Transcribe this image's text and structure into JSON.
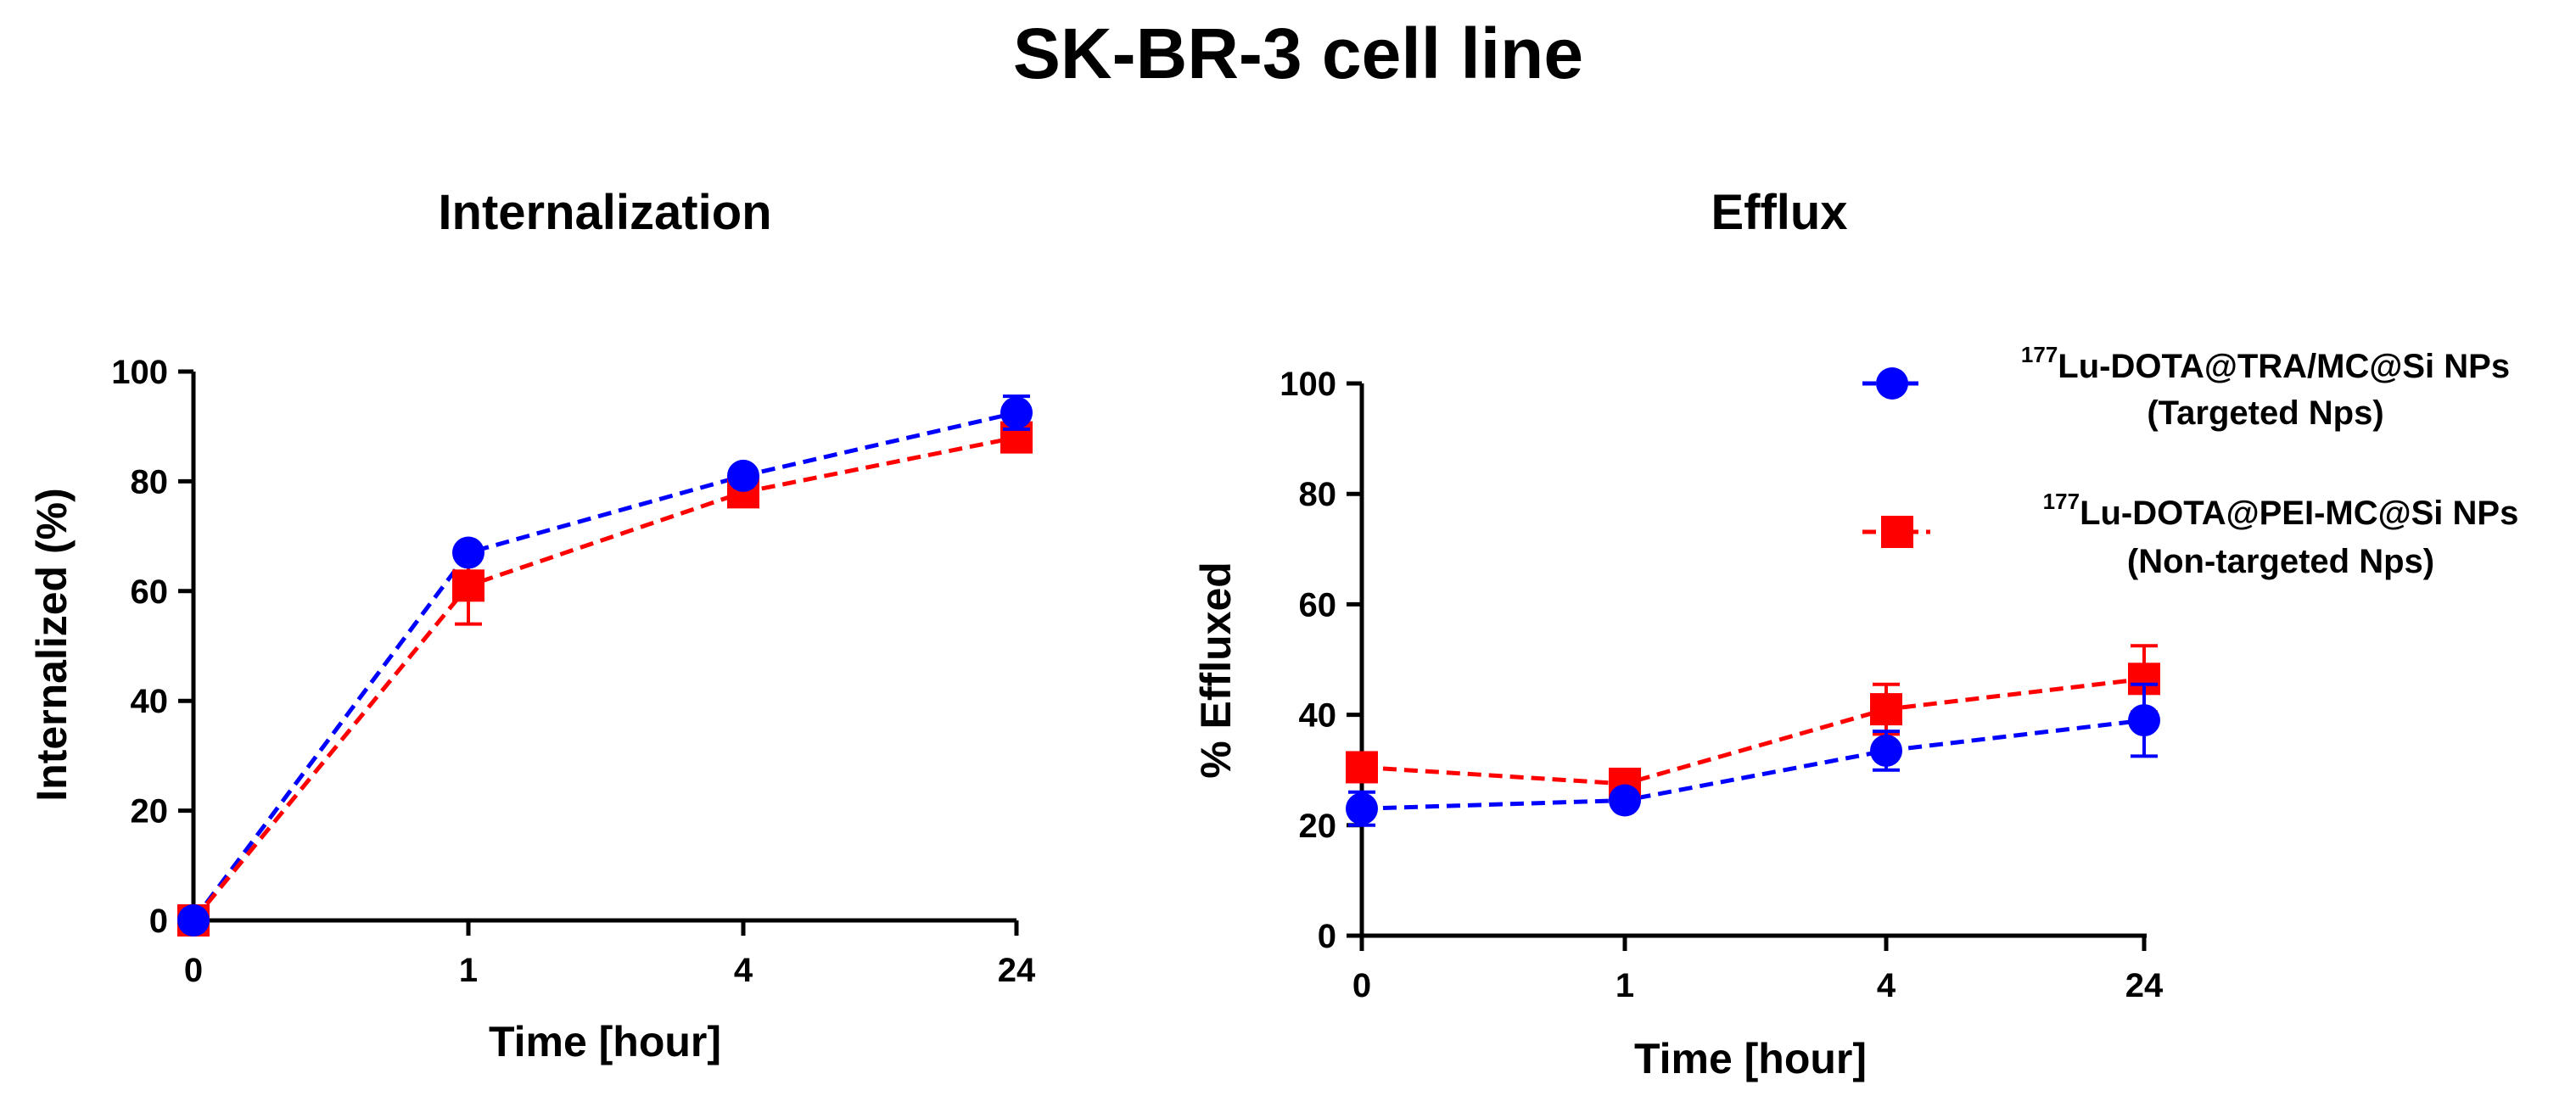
{
  "figure": {
    "title": "SK-BR-3 cell line"
  },
  "colors": {
    "targeted": "#0000FF",
    "nontargeted": "#FF0000",
    "axis": "#000000"
  },
  "chart_data": [
    {
      "type": "line",
      "title": "Internalization",
      "xlabel": "Time [hour]",
      "ylabel": "Internalized (%)",
      "categories": [
        "0",
        "1",
        "4",
        "24"
      ],
      "ylim": [
        0,
        100
      ],
      "yticks": [
        "0",
        "20",
        "40",
        "60",
        "80",
        "100"
      ],
      "grid": false,
      "series": [
        {
          "name": "177Lu-DOTA@TRA/MC@Si NPs (Targeted Nps)",
          "marker": "circle",
          "color": "#0000FF",
          "values": [
            0,
            67,
            81,
            92.5
          ],
          "error": [
            0,
            1,
            1,
            3
          ]
        },
        {
          "name": "177Lu-DOTA@PEI-MC@Si NPs (Non-targeted Nps)",
          "marker": "square",
          "color": "#FF0000",
          "values": [
            0,
            61,
            78,
            88
          ],
          "error": [
            0,
            7,
            1,
            1
          ]
        }
      ]
    },
    {
      "type": "line",
      "title": "Efflux",
      "xlabel": "Time [hour]",
      "ylabel": "% Effluxed",
      "categories": [
        "0",
        "1",
        "4",
        "24"
      ],
      "ylim": [
        0,
        100
      ],
      "yticks": [
        "0",
        "20",
        "40",
        "60",
        "80",
        "100"
      ],
      "grid": false,
      "legend": {
        "position": "top-right",
        "entries": [
          {
            "iso": "177",
            "line1": "Lu-DOTA@TRA/MC@Si NPs",
            "line2": "(Targeted Nps)",
            "marker": "circle",
            "color": "#0000FF"
          },
          {
            "iso": "177",
            "line1": "Lu-DOTA@PEI-MC@Si NPs",
            "line2": "(Non-targeted Nps)",
            "marker": "square",
            "color": "#FF0000"
          }
        ]
      },
      "series": [
        {
          "name": "177Lu-DOTA@TRA/MC@Si NPs (Targeted Nps)",
          "marker": "circle",
          "color": "#0000FF",
          "values": [
            23,
            24.5,
            33.5,
            39
          ],
          "error": [
            3,
            1,
            3.5,
            6.5
          ]
        },
        {
          "name": "177Lu-DOTA@PEI-MC@Si NPs (Non-targeted Nps)",
          "marker": "square",
          "color": "#FF0000",
          "values": [
            30.5,
            27.5,
            41,
            46.5
          ],
          "error": [
            1,
            1,
            4.5,
            6
          ]
        }
      ]
    }
  ]
}
